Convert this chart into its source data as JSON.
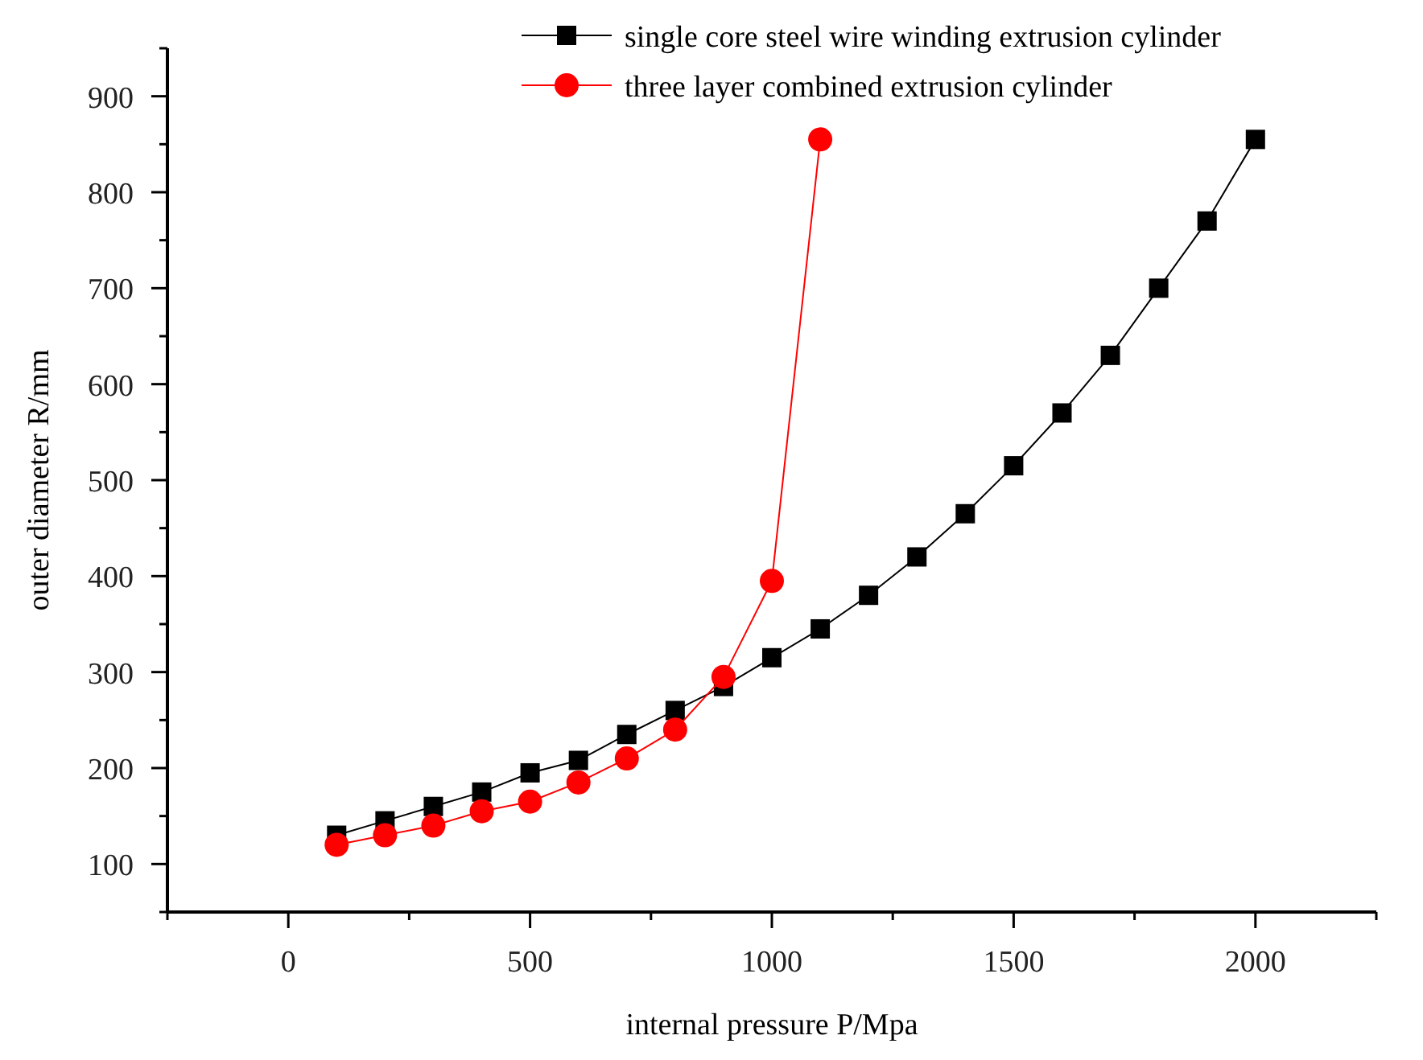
{
  "chart_data": {
    "type": "line",
    "xlabel": "internal pressure P/Mpa",
    "ylabel": "outer diameter R/mm",
    "xlim": [
      -250,
      2250
    ],
    "ylim": [
      50,
      950
    ],
    "xticks": [
      {
        "value": -250,
        "label": null
      },
      0,
      {
        "value": 250,
        "label": null
      },
      500,
      {
        "value": 750,
        "label": null
      },
      1000,
      {
        "value": 1250,
        "label": null
      },
      1500,
      {
        "value": 1750,
        "label": null
      },
      2000,
      {
        "value": 2250,
        "label": null
      }
    ],
    "yticks": [
      {
        "value": 50,
        "label": null
      },
      100,
      {
        "value": 150,
        "label": null
      },
      200,
      {
        "value": 250,
        "label": null
      },
      300,
      {
        "value": 350,
        "label": null
      },
      400,
      {
        "value": 450,
        "label": null
      },
      500,
      {
        "value": 550,
        "label": null
      },
      600,
      {
        "value": 650,
        "label": null
      },
      700,
      {
        "value": 750,
        "label": null
      },
      800,
      {
        "value": 850,
        "label": null
      },
      900,
      {
        "value": 950,
        "label": null
      }
    ],
    "grid": false,
    "legend": "top right",
    "series": [
      {
        "name": "single core steel wire winding extrusion cylinder",
        "color": "#000000",
        "marker": "square",
        "x": [
          100,
          200,
          300,
          400,
          500,
          600,
          700,
          800,
          900,
          1000,
          1100,
          1200,
          1300,
          1400,
          1500,
          1600,
          1700,
          1800,
          1900,
          2000
        ],
        "values": [
          130,
          145,
          160,
          175,
          195,
          208,
          235,
          260,
          285,
          315,
          345,
          380,
          420,
          465,
          515,
          570,
          630,
          700,
          770,
          855
        ]
      },
      {
        "name": "three layer combined extrusion cylinder",
        "color": "#ff0000",
        "marker": "circle",
        "x": [
          100,
          200,
          300,
          400,
          500,
          600,
          700,
          800,
          900,
          1000,
          1100
        ],
        "values": [
          120,
          130,
          140,
          155,
          165,
          185,
          210,
          240,
          295,
          395,
          855
        ]
      }
    ]
  }
}
